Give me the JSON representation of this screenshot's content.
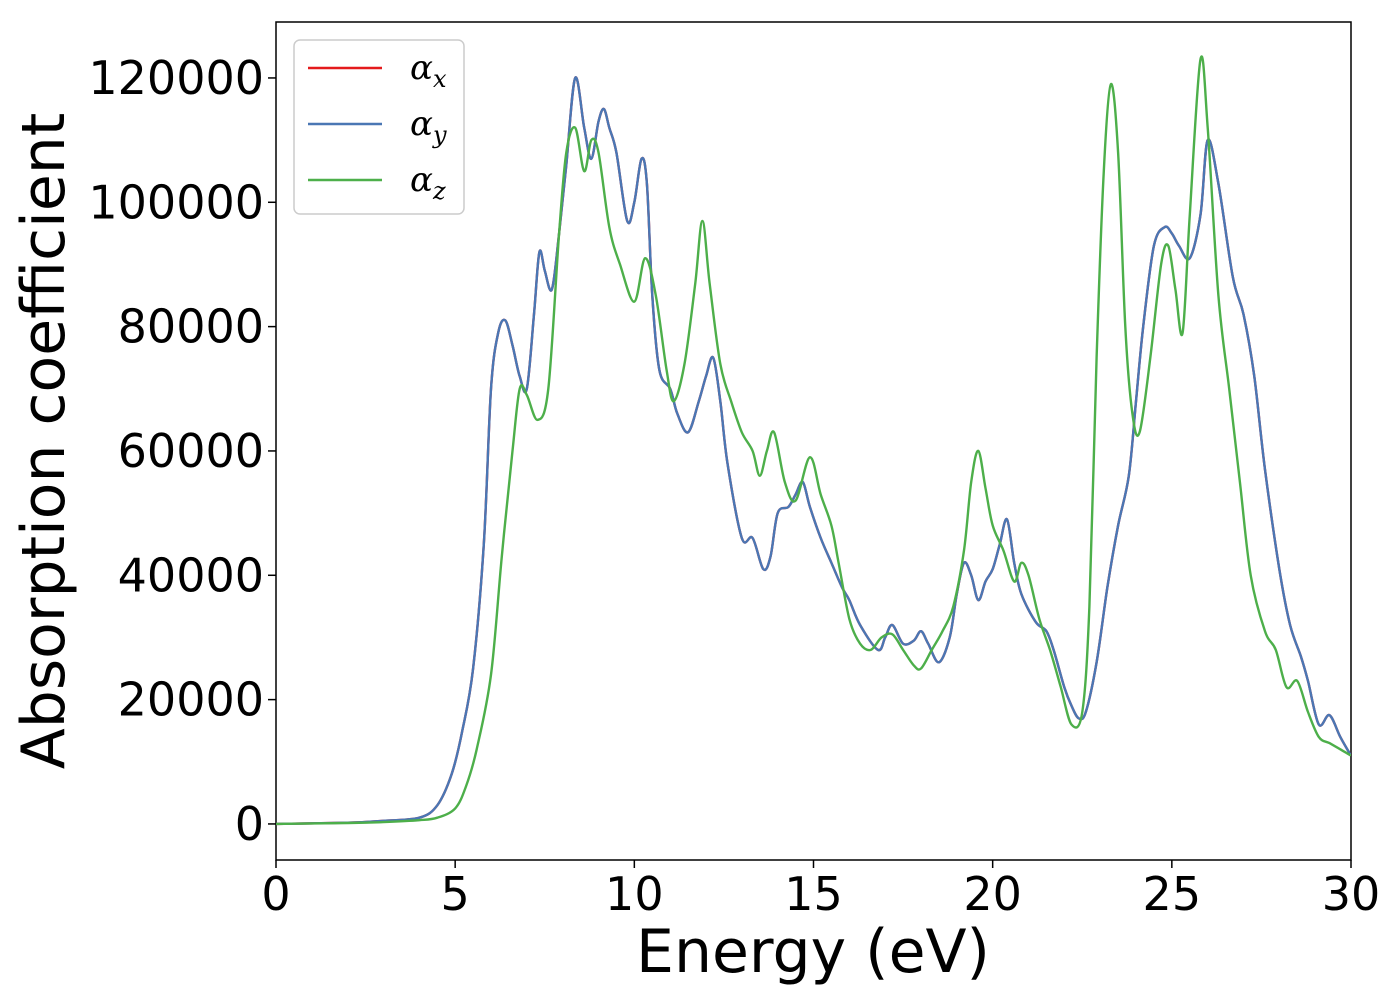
{
  "chart_data": {
    "type": "line",
    "title": "",
    "xlabel": "Energy (eV)",
    "ylabel": "Absorption coefficient",
    "xlim": [
      0,
      30
    ],
    "ylim": [
      -5800,
      129000
    ],
    "xticks": [
      0,
      5,
      10,
      15,
      20,
      25,
      30
    ],
    "xtick_labels": [
      "0",
      "5",
      "10",
      "15",
      "20",
      "25",
      "30"
    ],
    "yticks": [
      0,
      20000,
      40000,
      60000,
      80000,
      100000,
      120000
    ],
    "ytick_labels": [
      "0",
      "20000",
      "40000",
      "60000",
      "80000",
      "100000",
      "120000"
    ],
    "grid": false,
    "legend_position": "top-left",
    "series": [
      {
        "name": "α_x",
        "greek": "α",
        "sub": "x",
        "color": "#e41a1c",
        "x": [
          0,
          2,
          3,
          4,
          4.5,
          4.9,
          5.2,
          5.5,
          5.8,
          6.0,
          6.2,
          6.4,
          6.6,
          6.8,
          7.0,
          7.2,
          7.35,
          7.5,
          7.7,
          7.9,
          8.1,
          8.35,
          8.6,
          8.8,
          9.0,
          9.15,
          9.3,
          9.5,
          9.8,
          10.0,
          10.2,
          10.35,
          10.5,
          10.7,
          11.0,
          11.2,
          11.5,
          11.8,
          12.0,
          12.2,
          12.4,
          12.6,
          13.0,
          13.3,
          13.6,
          13.8,
          14.0,
          14.3,
          14.5,
          14.7,
          14.9,
          15.2,
          15.5,
          15.8,
          16.0,
          16.3,
          16.8,
          17.0,
          17.2,
          17.5,
          17.8,
          18.0,
          18.2,
          18.5,
          18.8,
          19.0,
          19.2,
          19.4,
          19.6,
          19.8,
          20.0,
          20.2,
          20.4,
          20.6,
          20.8,
          21.2,
          21.5,
          21.7,
          22.0,
          22.2,
          22.4,
          22.6,
          22.9,
          23.2,
          23.5,
          23.8,
          24.0,
          24.2,
          24.5,
          24.8,
          25.0,
          25.2,
          25.5,
          25.8,
          26.0,
          26.3,
          26.7,
          27.0,
          27.3,
          27.6,
          28.0,
          28.3,
          28.6,
          28.8,
          29.1,
          29.4,
          29.7,
          30.0
        ],
        "y": [
          0,
          200,
          500,
          1000,
          3000,
          8000,
          15000,
          25000,
          45000,
          70000,
          79000,
          81000,
          77000,
          72000,
          70000,
          82000,
          92000,
          89000,
          86000,
          95000,
          106000,
          120000,
          112000,
          107000,
          113000,
          115000,
          112000,
          108000,
          97000,
          100000,
          107000,
          103000,
          85000,
          73000,
          70000,
          66000,
          63000,
          68000,
          72000,
          75000,
          68000,
          58000,
          46000,
          46000,
          41000,
          43000,
          50000,
          51000,
          53000,
          55000,
          51000,
          46000,
          42000,
          38000,
          36000,
          32000,
          28000,
          30000,
          32000,
          29000,
          29500,
          31000,
          29000,
          26000,
          30000,
          37000,
          42000,
          40000,
          36000,
          39000,
          41000,
          45000,
          49000,
          42000,
          37000,
          32500,
          31000,
          28000,
          22000,
          19000,
          17000,
          18000,
          26000,
          38000,
          48000,
          56000,
          68000,
          80000,
          93000,
          96000,
          95000,
          93000,
          91000,
          98000,
          110000,
          103000,
          88000,
          82000,
          72000,
          57000,
          41000,
          32000,
          27000,
          23000,
          16000,
          17500,
          14000,
          11000
        ]
      },
      {
        "name": "α_y",
        "greek": "α",
        "sub": "y",
        "color": "#4a77b4",
        "x": [
          0,
          2,
          3,
          4,
          4.5,
          4.9,
          5.2,
          5.5,
          5.8,
          6.0,
          6.2,
          6.4,
          6.6,
          6.8,
          7.0,
          7.2,
          7.35,
          7.5,
          7.7,
          7.9,
          8.1,
          8.35,
          8.6,
          8.8,
          9.0,
          9.15,
          9.3,
          9.5,
          9.8,
          10.0,
          10.2,
          10.35,
          10.5,
          10.7,
          11.0,
          11.2,
          11.5,
          11.8,
          12.0,
          12.2,
          12.4,
          12.6,
          13.0,
          13.3,
          13.6,
          13.8,
          14.0,
          14.3,
          14.5,
          14.7,
          14.9,
          15.2,
          15.5,
          15.8,
          16.0,
          16.3,
          16.8,
          17.0,
          17.2,
          17.5,
          17.8,
          18.0,
          18.2,
          18.5,
          18.8,
          19.0,
          19.2,
          19.4,
          19.6,
          19.8,
          20.0,
          20.2,
          20.4,
          20.6,
          20.8,
          21.2,
          21.5,
          21.7,
          22.0,
          22.2,
          22.4,
          22.6,
          22.9,
          23.2,
          23.5,
          23.8,
          24.0,
          24.2,
          24.5,
          24.8,
          25.0,
          25.2,
          25.5,
          25.8,
          26.0,
          26.3,
          26.7,
          27.0,
          27.3,
          27.6,
          28.0,
          28.3,
          28.6,
          28.8,
          29.1,
          29.4,
          29.7,
          30.0
        ],
        "y": [
          0,
          200,
          500,
          1000,
          3000,
          8000,
          15000,
          25000,
          45000,
          70000,
          79000,
          81000,
          77000,
          72000,
          70000,
          82000,
          92000,
          89000,
          86000,
          95000,
          106000,
          120000,
          112000,
          107000,
          113000,
          115000,
          112000,
          108000,
          97000,
          100000,
          107000,
          103000,
          85000,
          73000,
          70000,
          66000,
          63000,
          68000,
          72000,
          75000,
          68000,
          58000,
          46000,
          46000,
          41000,
          43000,
          50000,
          51000,
          53000,
          55000,
          51000,
          46000,
          42000,
          38000,
          36000,
          32000,
          28000,
          30000,
          32000,
          29000,
          29500,
          31000,
          29000,
          26000,
          30000,
          37000,
          42000,
          40000,
          36000,
          39000,
          41000,
          45000,
          49000,
          42000,
          37000,
          32500,
          31000,
          28000,
          22000,
          19000,
          17000,
          18000,
          26000,
          38000,
          48000,
          56000,
          68000,
          80000,
          93000,
          96000,
          95000,
          93000,
          91000,
          98000,
          110000,
          103000,
          88000,
          82000,
          72000,
          57000,
          41000,
          32000,
          27000,
          23000,
          16000,
          17500,
          14000,
          11000
        ]
      },
      {
        "name": "α_z",
        "greek": "α",
        "sub": "z",
        "color": "#4daf4a",
        "x": [
          0,
          2,
          3,
          4,
          4.5,
          5.0,
          5.3,
          5.6,
          6.0,
          6.3,
          6.6,
          6.8,
          7.0,
          7.3,
          7.6,
          7.9,
          8.1,
          8.35,
          8.6,
          8.8,
          9.0,
          9.3,
          9.6,
          10.0,
          10.3,
          10.6,
          10.9,
          11.1,
          11.4,
          11.7,
          11.9,
          12.1,
          12.4,
          12.7,
          13.0,
          13.3,
          13.5,
          13.7,
          13.9,
          14.2,
          14.5,
          14.9,
          15.2,
          15.5,
          15.7,
          16.0,
          16.3,
          16.6,
          16.9,
          17.2,
          17.5,
          17.8,
          18.0,
          18.3,
          18.6,
          18.9,
          19.2,
          19.4,
          19.6,
          19.8,
          20.0,
          20.3,
          20.6,
          20.8,
          21.0,
          21.3,
          21.6,
          21.9,
          22.2,
          22.5,
          22.7,
          22.9,
          23.1,
          23.3,
          23.5,
          23.7,
          23.9,
          24.1,
          24.4,
          24.7,
          24.9,
          25.1,
          25.3,
          25.5,
          25.8,
          26.0,
          26.3,
          26.6,
          26.9,
          27.2,
          27.6,
          27.9,
          28.2,
          28.5,
          28.8,
          29.1,
          29.4,
          29.7,
          30.0
        ],
        "y": [
          0,
          150,
          300,
          600,
          1000,
          2500,
          6000,
          12000,
          24000,
          43000,
          60000,
          70000,
          69000,
          65000,
          70000,
          95000,
          108000,
          112000,
          105000,
          110000,
          108000,
          96000,
          90000,
          84000,
          91000,
          85000,
          73000,
          68000,
          74000,
          87000,
          97000,
          87000,
          74000,
          68000,
          63000,
          60000,
          56000,
          60000,
          63000,
          55000,
          52000,
          59000,
          53000,
          48000,
          42000,
          33000,
          29000,
          28000,
          30000,
          30500,
          28000,
          25500,
          25000,
          28000,
          31000,
          35000,
          44000,
          55000,
          60000,
          54000,
          48000,
          44000,
          39000,
          42000,
          40000,
          33000,
          28000,
          22000,
          16000,
          18000,
          35000,
          75000,
          105000,
          119000,
          108000,
          80000,
          66000,
          63000,
          75000,
          90000,
          93000,
          86000,
          79000,
          98000,
          123000,
          112000,
          85000,
          70000,
          55000,
          40000,
          31000,
          28000,
          22000,
          23000,
          18000,
          14000,
          13000,
          12000,
          11000
        ]
      }
    ]
  }
}
